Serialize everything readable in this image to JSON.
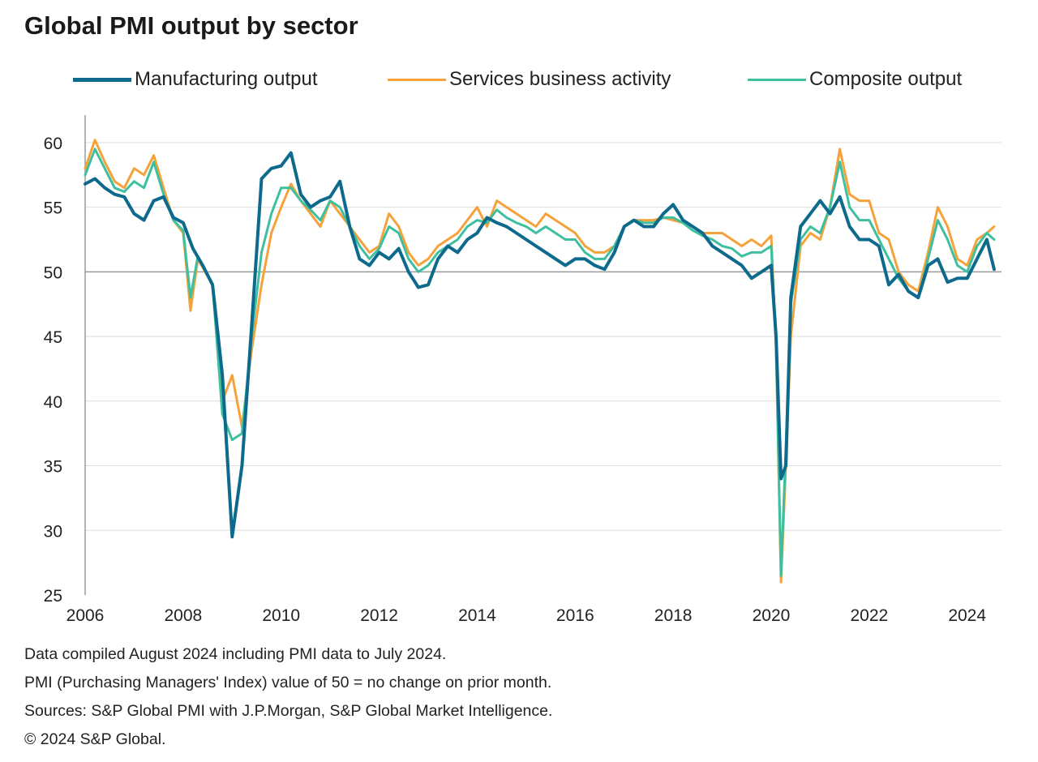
{
  "chart_data": {
    "type": "line",
    "title": "Global PMI output by sector",
    "xlabel": "",
    "ylabel": "",
    "xlim": [
      2006.0,
      2024.7
    ],
    "ylim": [
      25,
      62
    ],
    "yticks": [
      25,
      30,
      35,
      40,
      45,
      50,
      55,
      60
    ],
    "xticks": [
      2006,
      2008,
      2010,
      2012,
      2014,
      2016,
      2018,
      2020,
      2022,
      2024
    ],
    "reference_line": 50,
    "grid": "horizontal",
    "legend_position": "top",
    "series": [
      {
        "name": "Manufacturing output",
        "color": "#0e6a8c",
        "x": [
          2006.0,
          2006.2,
          2006.4,
          2006.6,
          2006.8,
          2007.0,
          2007.2,
          2007.4,
          2007.6,
          2007.8,
          2008.0,
          2008.2,
          2008.4,
          2008.6,
          2008.8,
          2009.0,
          2009.2,
          2009.4,
          2009.6,
          2009.8,
          2010.0,
          2010.2,
          2010.4,
          2010.6,
          2010.8,
          2011.0,
          2011.2,
          2011.4,
          2011.6,
          2011.8,
          2012.0,
          2012.2,
          2012.4,
          2012.6,
          2012.8,
          2013.0,
          2013.2,
          2013.4,
          2013.6,
          2013.8,
          2014.0,
          2014.2,
          2014.4,
          2014.6,
          2014.8,
          2015.0,
          2015.2,
          2015.4,
          2015.6,
          2015.8,
          2016.0,
          2016.2,
          2016.4,
          2016.6,
          2016.8,
          2017.0,
          2017.2,
          2017.4,
          2017.6,
          2017.8,
          2018.0,
          2018.2,
          2018.4,
          2018.6,
          2018.8,
          2019.0,
          2019.2,
          2019.4,
          2019.6,
          2019.8,
          2020.0,
          2020.1,
          2020.2,
          2020.3,
          2020.4,
          2020.6,
          2020.8,
          2021.0,
          2021.2,
          2021.4,
          2021.6,
          2021.8,
          2022.0,
          2022.2,
          2022.4,
          2022.6,
          2022.8,
          2023.0,
          2023.2,
          2023.4,
          2023.6,
          2023.8,
          2024.0,
          2024.2,
          2024.4,
          2024.55
        ],
        "values": [
          56.8,
          57.2,
          56.5,
          56.0,
          55.8,
          54.5,
          54.0,
          55.5,
          55.8,
          54.2,
          53.8,
          51.8,
          50.5,
          49.0,
          42.0,
          29.5,
          35.0,
          46.0,
          57.2,
          58.0,
          58.2,
          59.2,
          56.0,
          55.0,
          55.5,
          55.8,
          57.0,
          53.5,
          51.0,
          50.5,
          51.5,
          51.0,
          51.8,
          50.0,
          48.8,
          49.0,
          51.0,
          52.0,
          51.5,
          52.5,
          53.0,
          54.2,
          53.8,
          53.5,
          53.0,
          52.5,
          52.0,
          51.5,
          51.0,
          50.5,
          51.0,
          51.0,
          50.5,
          50.2,
          51.5,
          53.5,
          54.0,
          53.5,
          53.5,
          54.5,
          55.2,
          54.0,
          53.5,
          53.0,
          52.0,
          51.5,
          51.0,
          50.5,
          49.5,
          50.0,
          50.5,
          45.0,
          34.0,
          35.0,
          48.0,
          53.5,
          54.5,
          55.5,
          54.5,
          55.8,
          53.5,
          52.5,
          52.5,
          52.0,
          49.0,
          49.8,
          48.5,
          48.0,
          50.5,
          51.0,
          49.2,
          49.5,
          49.5,
          51.0,
          52.5,
          50.2
        ]
      },
      {
        "name": "Services business activity",
        "color": "#f5a23a",
        "x": [
          2006.0,
          2006.2,
          2006.4,
          2006.6,
          2006.8,
          2007.0,
          2007.2,
          2007.4,
          2007.6,
          2007.8,
          2008.0,
          2008.15,
          2008.3,
          2008.6,
          2008.8,
          2009.0,
          2009.2,
          2009.4,
          2009.6,
          2009.8,
          2010.0,
          2010.2,
          2010.4,
          2010.6,
          2010.8,
          2011.0,
          2011.2,
          2011.4,
          2011.6,
          2011.8,
          2012.0,
          2012.2,
          2012.4,
          2012.6,
          2012.8,
          2013.0,
          2013.2,
          2013.4,
          2013.6,
          2013.8,
          2014.0,
          2014.2,
          2014.4,
          2014.6,
          2014.8,
          2015.0,
          2015.2,
          2015.4,
          2015.6,
          2015.8,
          2016.0,
          2016.2,
          2016.4,
          2016.6,
          2016.8,
          2017.0,
          2017.2,
          2017.4,
          2017.6,
          2017.8,
          2018.0,
          2018.2,
          2018.4,
          2018.6,
          2018.8,
          2019.0,
          2019.2,
          2019.4,
          2019.6,
          2019.8,
          2020.0,
          2020.1,
          2020.2,
          2020.3,
          2020.4,
          2020.6,
          2020.8,
          2021.0,
          2021.2,
          2021.4,
          2021.6,
          2021.8,
          2022.0,
          2022.2,
          2022.4,
          2022.6,
          2022.8,
          2023.0,
          2023.2,
          2023.4,
          2023.6,
          2023.8,
          2024.0,
          2024.2,
          2024.4,
          2024.55
        ],
        "values": [
          58.0,
          60.2,
          58.5,
          57.0,
          56.5,
          58.0,
          57.5,
          59.0,
          56.5,
          54.0,
          53.0,
          47.0,
          51.0,
          49.0,
          40.0,
          42.0,
          38.0,
          44.0,
          49.0,
          53.0,
          55.0,
          56.8,
          55.5,
          54.5,
          53.5,
          55.5,
          54.5,
          53.5,
          52.5,
          51.5,
          52.0,
          54.5,
          53.5,
          51.5,
          50.5,
          51.0,
          52.0,
          52.5,
          53.0,
          54.0,
          55.0,
          53.5,
          55.5,
          55.0,
          54.5,
          54.0,
          53.5,
          54.5,
          54.0,
          53.5,
          53.0,
          52.0,
          51.5,
          51.5,
          52.0,
          53.5,
          54.0,
          54.0,
          54.0,
          54.2,
          54.0,
          53.8,
          53.5,
          53.0,
          53.0,
          53.0,
          52.5,
          52.0,
          52.5,
          52.0,
          52.8,
          44.0,
          26.0,
          35.0,
          45.0,
          52.0,
          53.0,
          52.5,
          55.0,
          59.5,
          56.0,
          55.5,
          55.5,
          53.0,
          52.5,
          50.0,
          49.0,
          48.5,
          51.5,
          55.0,
          53.5,
          51.0,
          50.5,
          52.5,
          53.0,
          53.5
        ]
      },
      {
        "name": "Composite output",
        "color": "#3ebfa0",
        "x": [
          2006.0,
          2006.2,
          2006.4,
          2006.6,
          2006.8,
          2007.0,
          2007.2,
          2007.4,
          2007.6,
          2007.8,
          2008.0,
          2008.15,
          2008.3,
          2008.6,
          2008.8,
          2009.0,
          2009.2,
          2009.4,
          2009.6,
          2009.8,
          2010.0,
          2010.2,
          2010.4,
          2010.6,
          2010.8,
          2011.0,
          2011.2,
          2011.4,
          2011.6,
          2011.8,
          2012.0,
          2012.2,
          2012.4,
          2012.6,
          2012.8,
          2013.0,
          2013.2,
          2013.4,
          2013.6,
          2013.8,
          2014.0,
          2014.2,
          2014.4,
          2014.6,
          2014.8,
          2015.0,
          2015.2,
          2015.4,
          2015.6,
          2015.8,
          2016.0,
          2016.2,
          2016.4,
          2016.6,
          2016.8,
          2017.0,
          2017.2,
          2017.4,
          2017.6,
          2017.8,
          2018.0,
          2018.2,
          2018.4,
          2018.6,
          2018.8,
          2019.0,
          2019.2,
          2019.4,
          2019.6,
          2019.8,
          2020.0,
          2020.1,
          2020.2,
          2020.3,
          2020.4,
          2020.6,
          2020.8,
          2021.0,
          2021.2,
          2021.4,
          2021.6,
          2021.8,
          2022.0,
          2022.2,
          2022.4,
          2022.6,
          2022.8,
          2023.0,
          2023.2,
          2023.4,
          2023.6,
          2023.8,
          2024.0,
          2024.2,
          2024.4,
          2024.55
        ],
        "values": [
          57.5,
          59.5,
          58.0,
          56.5,
          56.2,
          57.0,
          56.5,
          58.5,
          56.0,
          54.0,
          53.2,
          48.0,
          51.2,
          49.0,
          39.0,
          37.0,
          37.5,
          45.0,
          51.5,
          54.5,
          56.5,
          56.5,
          55.5,
          54.8,
          54.0,
          55.5,
          55.0,
          53.5,
          52.0,
          51.0,
          51.8,
          53.5,
          53.0,
          51.0,
          50.0,
          50.5,
          51.5,
          52.0,
          52.5,
          53.5,
          54.0,
          53.8,
          54.8,
          54.2,
          53.8,
          53.5,
          53.0,
          53.5,
          53.0,
          52.5,
          52.5,
          51.5,
          51.0,
          51.0,
          52.0,
          53.5,
          54.0,
          53.8,
          53.8,
          54.2,
          54.2,
          53.8,
          53.2,
          52.8,
          52.5,
          52.0,
          51.8,
          51.2,
          51.5,
          51.5,
          52.0,
          44.5,
          26.5,
          36.5,
          47.5,
          52.5,
          53.5,
          53.0,
          55.0,
          58.5,
          55.0,
          54.0,
          54.0,
          52.5,
          51.0,
          49.5,
          48.5,
          48.0,
          51.0,
          54.0,
          52.5,
          50.5,
          50.0,
          52.0,
          53.0,
          52.5
        ]
      }
    ]
  },
  "notes": [
    "Data compiled August 2024 including PMI data to July 2024.",
    "PMI (Purchasing Managers' Index) value of 50 = no change on prior month.",
    "Sources: S&P Global PMI with J.P.Morgan, S&P Global Market Intelligence.",
    "© 2024 S&P Global."
  ]
}
